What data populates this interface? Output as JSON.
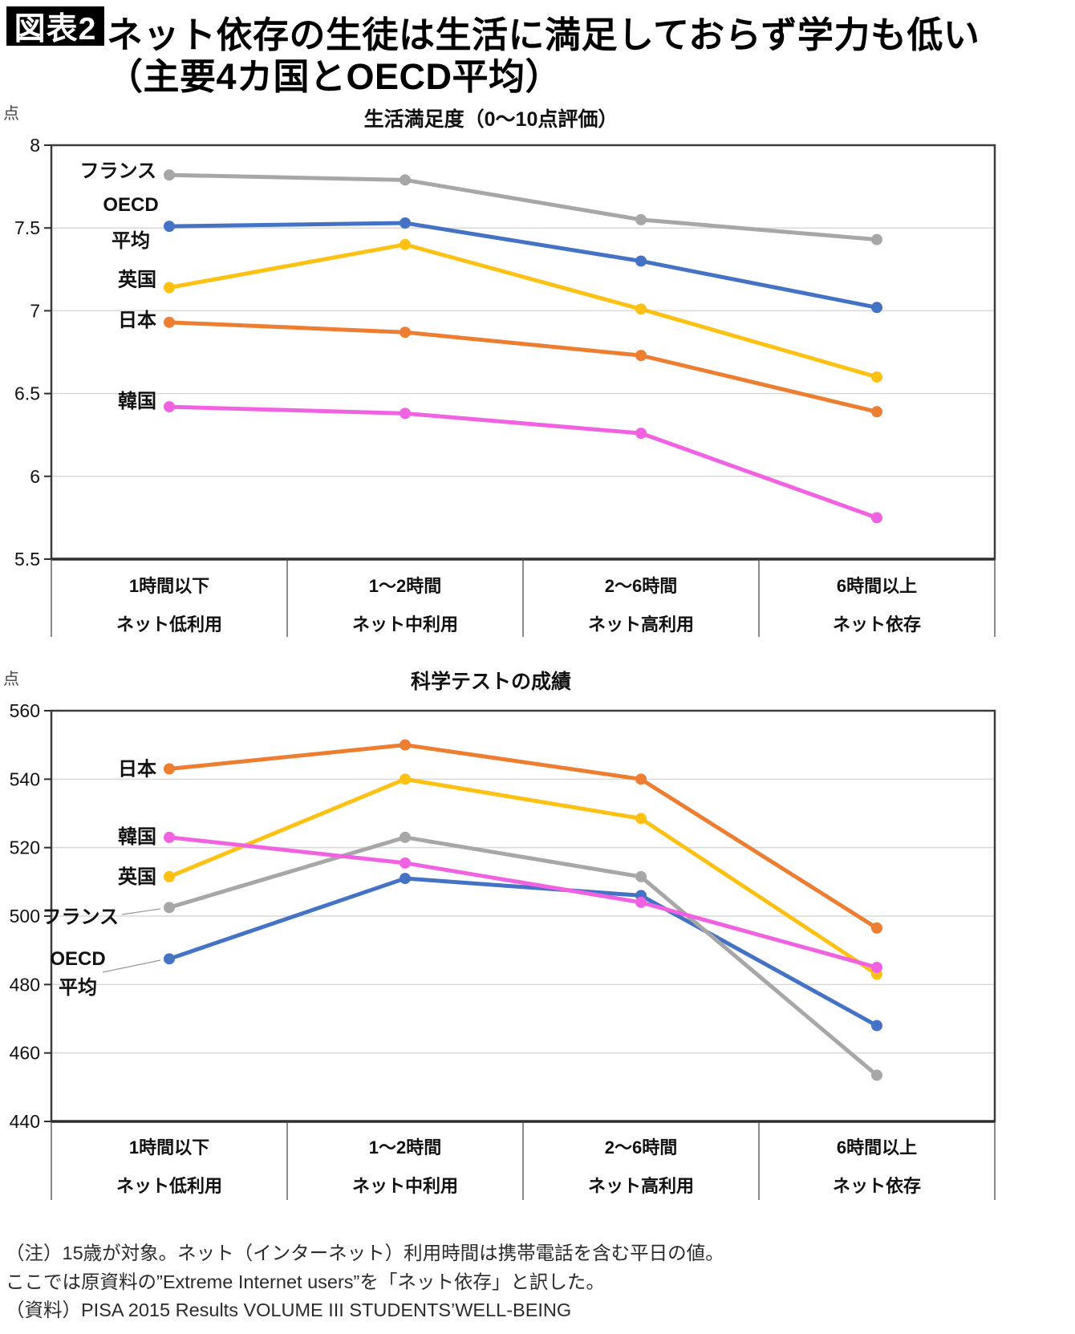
{
  "header": {
    "badge": "図表2",
    "title_line1": "ネット依存の生徒は生活に満足しておらず学力も低い",
    "title_line2": "（主要4カ国とOECD平均）"
  },
  "chart_data": [
    {
      "type": "line",
      "title": "生活満足度（0〜10点評価）",
      "unit_label": "点",
      "categories": [
        "1時間以下",
        "1〜2時間",
        "2〜6時間",
        "6時間以上"
      ],
      "category_sublabels": [
        "ネット低利用",
        "ネット中利用",
        "ネット高利用",
        "ネット依存"
      ],
      "xlabel": "",
      "ylabel": "点",
      "ylim": [
        5.5,
        8
      ],
      "yticks": [
        8,
        7.5,
        7,
        6.5,
        6,
        5.5
      ],
      "grid": true,
      "legend_position": "inline-left-of-first-point",
      "series": [
        {
          "name": "フランス",
          "color": "#a7a7a7",
          "values": [
            7.82,
            7.79,
            7.55,
            7.43
          ]
        },
        {
          "name": "OECD平均",
          "label_lines": [
            "OECD",
            "平均"
          ],
          "color": "#4472c4",
          "values": [
            7.51,
            7.53,
            7.3,
            7.02
          ]
        },
        {
          "name": "英国",
          "color": "#fcc113",
          "values": [
            7.14,
            7.4,
            7.01,
            6.6
          ]
        },
        {
          "name": "日本",
          "color": "#ed7d31",
          "values": [
            6.93,
            6.87,
            6.73,
            6.39
          ]
        },
        {
          "name": "韓国",
          "color": "#f162e2",
          "values": [
            6.42,
            6.38,
            6.26,
            5.75
          ]
        }
      ]
    },
    {
      "type": "line",
      "title": "科学テストの成績",
      "unit_label": "点",
      "categories": [
        "1時間以下",
        "1〜2時間",
        "2〜6時間",
        "6時間以上"
      ],
      "category_sublabels": [
        "ネット低利用",
        "ネット中利用",
        "ネット高利用",
        "ネット依存"
      ],
      "xlabel": "",
      "ylabel": "点",
      "ylim": [
        440,
        560
      ],
      "yticks": [
        560,
        540,
        520,
        500,
        480,
        460,
        440
      ],
      "grid": true,
      "legend_position": "inline-left-of-first-point",
      "series": [
        {
          "name": "日本",
          "color": "#ed7d31",
          "values": [
            543,
            550,
            540,
            496.5
          ]
        },
        {
          "name": "韓国",
          "color": "#f162e2",
          "values": [
            523,
            515.5,
            504,
            485
          ]
        },
        {
          "name": "英国",
          "color": "#fcc113",
          "values": [
            511.5,
            540,
            528.5,
            483
          ]
        },
        {
          "name": "フランス",
          "color": "#a7a7a7",
          "values": [
            502.5,
            523,
            511.5,
            453.5
          ]
        },
        {
          "name": "OECD平均",
          "label_lines": [
            "OECD",
            "平均"
          ],
          "color": "#4472c4",
          "values": [
            487.5,
            511,
            506,
            468
          ]
        }
      ]
    }
  ],
  "footnotes": [
    "（注）15歳が対象。ネット（インターネット）利用時間は携帯電話を含む平日の値。",
    "ここでは原資料の”Extreme Internet users”を「ネット依存」と訳した。",
    "（資料）PISA 2015 Results VOLUME III STUDENTS’WELL-BEING"
  ]
}
